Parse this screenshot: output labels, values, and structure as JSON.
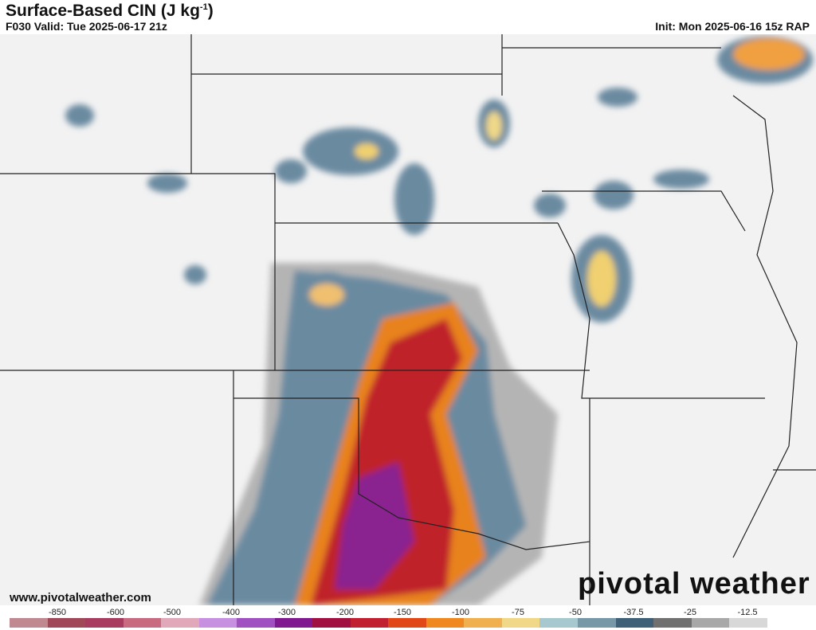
{
  "header": {
    "title": "Surface-Based CIN (J kg",
    "title_sup": "-1",
    "title_close": ")",
    "valid": "F030 Valid: Tue 2025-06-17 21z",
    "init": "Init: Mon 2025-06-16 15z RAP"
  },
  "footer": {
    "website": "www.pivotalweather.com",
    "logo": "pivotal weather"
  },
  "colorbar": {
    "labels": [
      "-850",
      "-600",
      "-500",
      "-400",
      "-300",
      "-200",
      "-150",
      "-100",
      "-75",
      "-50",
      "-37.5",
      "-25",
      "-12.5"
    ],
    "colors": [
      "#c08890",
      "#a04858",
      "#a83c60",
      "#c86a80",
      "#e0a8b8",
      "#c890e0",
      "#a050c0",
      "#801890",
      "#a01040",
      "#c02030",
      "#e04818",
      "#f08820",
      "#f0b050",
      "#f0d888",
      "#a8c8d0",
      "#7898a8",
      "#406078",
      "#707070",
      "#a8a8a8",
      "#d8d8d8",
      "#ffffff"
    ]
  }
}
